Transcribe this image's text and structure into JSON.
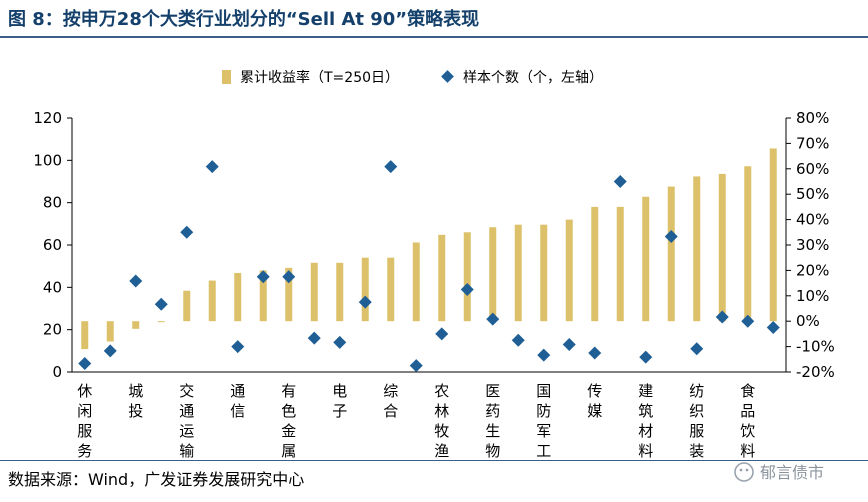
{
  "header": {
    "title": "图 8：按申万28个大类行业划分的“Sell At 90”策略表现"
  },
  "footer": {
    "source": "数据来源：Wind，广发证券发展研究中心",
    "watermark": "郁言债市"
  },
  "chart_data": {
    "type": "bar",
    "categories": [
      "休闲服务",
      "",
      "城投",
      "",
      "交通运输",
      "",
      "通信",
      "",
      "有色金属",
      "",
      "电子",
      "",
      "综合",
      "",
      "农林牧渔",
      "",
      "医药生物",
      "",
      "国防军工",
      "",
      "传媒",
      "",
      "建筑材料",
      "",
      "纺织服装",
      "",
      "食品饮料",
      ""
    ],
    "series": [
      {
        "name": "累计收益率（T=250日）",
        "type": "bar",
        "axis": "right",
        "color": "#dcc06a",
        "values": [
          -11,
          -8,
          -3,
          0,
          12,
          16,
          19,
          20,
          21,
          23,
          23,
          25,
          25,
          31,
          34,
          35,
          37,
          38,
          38,
          40,
          45,
          45,
          49,
          53,
          57,
          58,
          61,
          68
        ]
      },
      {
        "name": "样本个数（个，左轴）",
        "type": "scatter",
        "axis": "left",
        "color": "#1f5f96",
        "values": [
          4,
          10,
          43,
          32,
          66,
          97,
          12,
          45,
          45,
          16,
          14,
          33,
          97,
          3,
          18,
          39,
          25,
          15,
          8,
          13,
          9,
          90,
          7,
          64,
          11,
          26,
          24,
          21
        ]
      }
    ],
    "left_axis": {
      "min": 0,
      "max": 120,
      "ticks": [
        "0",
        "20",
        "40",
        "60",
        "80",
        "100",
        "120"
      ]
    },
    "right_axis": {
      "min": -20,
      "max": 80,
      "ticks": [
        "-20%",
        "-10%",
        "0%",
        "10%",
        "20%",
        "30%",
        "40%",
        "50%",
        "60%",
        "70%",
        "80%"
      ]
    },
    "legend_position": "top",
    "grid": false
  }
}
